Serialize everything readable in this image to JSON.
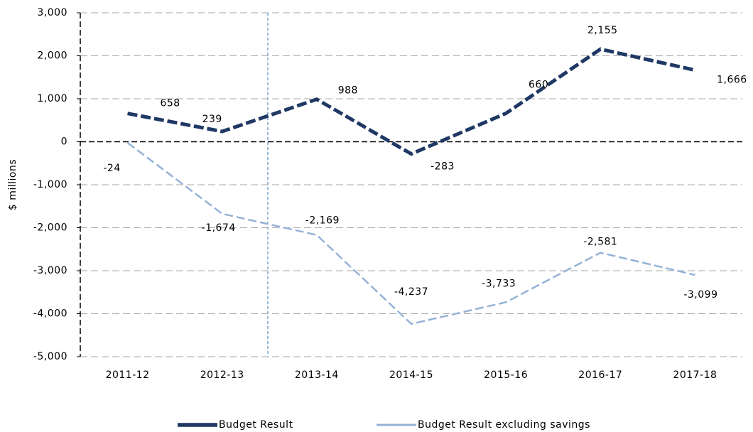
{
  "chart_data": {
    "type": "line",
    "y_axis_label": "$ millions",
    "categories": [
      "2011-12",
      "2012-13",
      "2013-14",
      "2014-15",
      "2015-16",
      "2016-17",
      "2017-18"
    ],
    "series": [
      {
        "name": "Budget Result",
        "color": "#1f3864",
        "values": [
          658,
          239,
          988,
          -283,
          660,
          2155,
          1666
        ],
        "value_labels": [
          "658",
          "239",
          "988",
          "-283",
          "660",
          "2,155",
          "1,666"
        ]
      },
      {
        "name": "Budget Result excluding savings",
        "color": "#95b3d7",
        "values": [
          -24,
          -1674,
          -2169,
          -4237,
          -3733,
          -2581,
          -3099
        ],
        "value_labels": [
          "-24",
          "-1,674",
          "-2,169",
          "-4,237",
          "-3,733",
          "-2,581",
          "-3,099"
        ]
      }
    ],
    "ylim": [
      -5000,
      3000
    ],
    "yticks": [
      {
        "value": -5000,
        "label": "-5,000"
      },
      {
        "value": -4000,
        "label": "-4,000"
      },
      {
        "value": -3000,
        "label": "-3,000"
      },
      {
        "value": -2000,
        "label": "-2,000"
      },
      {
        "value": -1000,
        "label": "-1,000"
      },
      0,
      {
        "value": 1000,
        "label": "1,000"
      },
      {
        "value": 2000,
        "label": "2,000"
      },
      {
        "value": 3000,
        "label": "3,000"
      }
    ],
    "grid": true,
    "legend": "bottom"
  }
}
